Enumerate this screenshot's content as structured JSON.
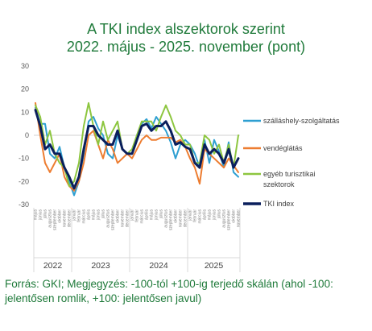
{
  "title_line1": "A TKI index alszektorok szerint",
  "title_line2": "2022. május - 2025. november (pont)",
  "note": "Forrás: GKI; Megjegyzés: -100-tól +100-ig terjedő skálán (ahol -100: jelentősen romlik, +100: jelentősen javul)",
  "chart_data": {
    "type": "line",
    "title": "A TKI index alszektorok szerint 2022. május - 2025. november (pont)",
    "ylim": [
      -30,
      30
    ],
    "yticks": [
      30,
      20,
      10,
      0,
      -10,
      -20,
      -30
    ],
    "grid": false,
    "legend_position": "right",
    "x": [
      "2022-05",
      "2022-06",
      "2022-07",
      "2022-08",
      "2022-09",
      "2022-10",
      "2022-11",
      "2022-12",
      "2023-01",
      "2023-02",
      "2023-03",
      "2023-04",
      "2023-05",
      "2023-06",
      "2023-07",
      "2023-08",
      "2023-09",
      "2023-10",
      "2023-11",
      "2023-12",
      "2024-01",
      "2024-02",
      "2024-03",
      "2024-04",
      "2024-05",
      "2024-06",
      "2024-07",
      "2024-08",
      "2024-09",
      "2024-10",
      "2024-11",
      "2024-12",
      "2025-01",
      "2025-02",
      "2025-03",
      "2025-04",
      "2025-05",
      "2025-06",
      "2025-07",
      "2025-08",
      "2025-09",
      "2025-10",
      "2025-11"
    ],
    "month_labels": [
      "május",
      "június",
      "július",
      "augusztus",
      "szeptember",
      "október",
      "november",
      "december",
      "január",
      "február",
      "március",
      "április",
      "május",
      "június",
      "július",
      "augusztus",
      "szeptember",
      "október",
      "november",
      "december",
      "január",
      "február",
      "március",
      "április",
      "május",
      "június",
      "július",
      "augusztus",
      "szeptember",
      "október",
      "november",
      "december",
      "január",
      "február",
      "március",
      "április",
      "május",
      "június",
      "július",
      "augusztus",
      "szeptember",
      "október",
      "november"
    ],
    "years": [
      {
        "label": "2022",
        "start": 0,
        "end": 7
      },
      {
        "label": "2023",
        "start": 8,
        "end": 19
      },
      {
        "label": "2024",
        "start": 20,
        "end": 31
      },
      {
        "label": "2025",
        "start": 32,
        "end": 42
      }
    ],
    "series": [
      {
        "name": "szálláshely-szolgáltatás",
        "color": "#2e9fd1",
        "width": 2,
        "values": [
          12,
          5,
          5,
          -8,
          -10,
          -5,
          -14,
          -20,
          -26,
          -20,
          -8,
          6,
          8,
          3,
          0,
          -8,
          -10,
          0,
          -6,
          -8,
          -8,
          0,
          5,
          7,
          3,
          8,
          5,
          2,
          -3,
          -10,
          -4,
          -2,
          -4,
          -8,
          -14,
          -2,
          -12,
          -2,
          -7,
          -14,
          -3,
          -16,
          -18
        ]
      },
      {
        "name": "vendéglátás",
        "color": "#ed7d31",
        "width": 2,
        "values": [
          14,
          0,
          -12,
          -16,
          -12,
          -8,
          -18,
          -22,
          -24,
          -20,
          -12,
          0,
          2,
          -4,
          -10,
          -2,
          -6,
          -12,
          -10,
          -8,
          -10,
          -6,
          -2,
          0,
          -2,
          -2,
          -1,
          -1,
          -1,
          -3,
          -2,
          -5,
          -10,
          -14,
          -21,
          -6,
          -8,
          -10,
          -12,
          -14,
          -10,
          -13,
          -16
        ]
      },
      {
        "name": "egyéb turisztikai szektorok",
        "color": "#8dc63f",
        "width": 2,
        "values": [
          13,
          8,
          -4,
          2,
          -8,
          -12,
          -14,
          -22,
          -20,
          -12,
          4,
          14,
          4,
          -4,
          6,
          -2,
          2,
          6,
          -6,
          -8,
          -6,
          0,
          6,
          6,
          6,
          2,
          8,
          13,
          8,
          2,
          0,
          -4,
          -4,
          -12,
          -12,
          0,
          -2,
          -8,
          -4,
          -12,
          -4,
          -14,
          0
        ]
      },
      {
        "name": "TKI index",
        "color": "#0a1f5c",
        "width": 3,
        "values": [
          11,
          4,
          -6,
          -4,
          -8,
          -8,
          -14,
          -18,
          -23,
          -18,
          -6,
          4,
          4,
          0,
          -2,
          -4,
          -4,
          2,
          -6,
          -8,
          -8,
          -2,
          4,
          5,
          2,
          4,
          4,
          6,
          2,
          -4,
          -3,
          -5,
          -6,
          -12,
          -14,
          -4,
          -8,
          -6,
          -8,
          -12,
          -6,
          -14,
          -10
        ]
      }
    ]
  }
}
